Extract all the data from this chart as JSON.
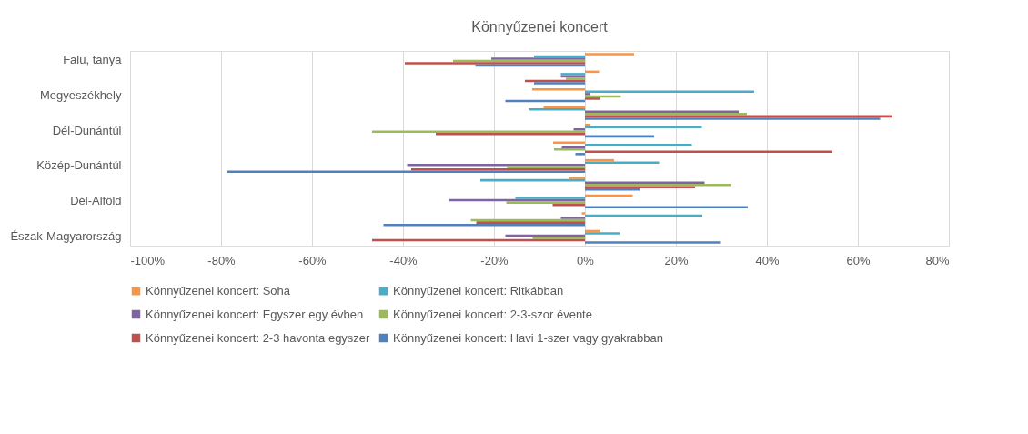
{
  "chart_data": {
    "type": "bar",
    "orientation": "horizontal",
    "title": "Könnyűzenei koncert",
    "categories": [
      "Falu, tanya",
      null,
      "Megyeszékhely",
      null,
      "Dél-Dunántúl",
      null,
      "Közép-Dunántúl",
      null,
      "Dél-Alföld",
      null,
      "Észak-Magyarország"
    ],
    "series": [
      {
        "name": "Könnyűzenei koncert: Soha",
        "color": "#f79646",
        "values": [
          10.8,
          3.1,
          -11.6,
          -9.1,
          1.1,
          -7,
          6.4,
          -3.6,
          10.5,
          -0.7,
          3.2
        ]
      },
      {
        "name": "Könnyűzenei koncert: Ritkábban",
        "color": "#4bacc6",
        "values": [
          -11.2,
          -5.3,
          37.2,
          -12.4,
          25.7,
          23.5,
          16.3,
          -23,
          -15.3,
          25.8,
          7.6
        ]
      },
      {
        "name": "Könnyűzenei koncert: Egyszer egy évben",
        "color": "#8064a2",
        "values": [
          -20.6,
          -5.3,
          1.1,
          33.8,
          -2.5,
          -5.1,
          -39.1,
          26.3,
          -29.8,
          -5.3,
          -17.5
        ]
      },
      {
        "name": "Könnyűzenei koncert: 2-3-szor évente",
        "color": "#9bbb59",
        "values": [
          -29,
          -4.2,
          7.9,
          35.6,
          -46.8,
          -6.8,
          -17.1,
          32.2,
          -17.3,
          -25.1,
          -11.5
        ]
      },
      {
        "name": "Könnyűzenei koncert: 2-3 havonta egyszer",
        "color": "#c0504d",
        "values": [
          -39.6,
          -13.2,
          3.4,
          67.6,
          -32.8,
          54.4,
          -38.2,
          24.2,
          -7.1,
          -23.9,
          -46.8
        ]
      },
      {
        "name": "Könnyűzenei koncert: Havi 1-szer vagy gyakrabban",
        "color": "#4f81bd",
        "values": [
          -24.1,
          -11.2,
          -17.5,
          64.9,
          15.2,
          -2.1,
          -78.7,
          12,
          35.8,
          -44.3,
          29.7
        ]
      }
    ],
    "xlim": [
      -100,
      80
    ],
    "xticks": [
      {
        "value": -100,
        "label": "-100%"
      },
      {
        "value": -80,
        "label": "-80%"
      },
      {
        "value": -60,
        "label": "-60%"
      },
      {
        "value": -40,
        "label": "-40%"
      },
      {
        "value": -20,
        "label": "-20%"
      },
      {
        "value": 0,
        "label": "0%"
      },
      {
        "value": 20,
        "label": "20%"
      },
      {
        "value": 40,
        "label": "40%"
      },
      {
        "value": 60,
        "label": "60%"
      },
      {
        "value": 80,
        "label": "80%"
      }
    ],
    "grid": "x",
    "legend": "bottom"
  }
}
